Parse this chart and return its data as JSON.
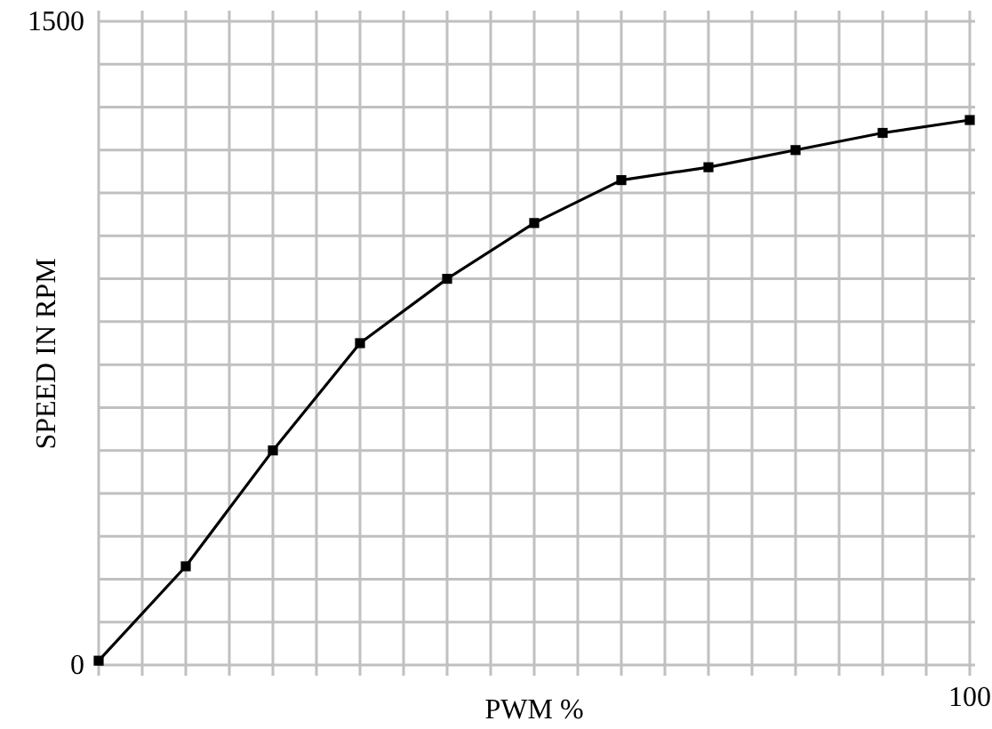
{
  "chart_data": {
    "type": "line",
    "xlabel": "PWM %",
    "ylabel": "SPEED IN RPM",
    "categories": [
      null,
      null,
      null,
      null,
      null,
      null,
      null,
      null,
      null,
      null,
      "100"
    ],
    "series": [
      {
        "color": "#000000",
        "values": [
          10,
          230,
          500,
          750,
          900,
          1030,
          1130,
          1160,
          1200,
          1240,
          1270
        ]
      }
    ],
    "ylim": [
      0,
      1500
    ],
    "yticks": [
      0,
      {
        "value": 100,
        "label": null
      },
      {
        "value": 200,
        "label": null
      },
      {
        "value": 300,
        "label": null
      },
      {
        "value": 400,
        "label": null
      },
      {
        "value": 500,
        "label": null
      },
      {
        "value": 600,
        "label": null
      },
      {
        "value": 700,
        "label": null
      },
      {
        "value": 800,
        "label": null
      },
      {
        "value": 900,
        "label": null
      },
      {
        "value": 1000,
        "label": null
      },
      {
        "value": 1100,
        "label": null
      },
      {
        "value": 1200,
        "label": null
      },
      {
        "value": 1300,
        "label": null
      },
      {
        "value": 1400,
        "label": null
      },
      1500
    ],
    "grid": true,
    "marker": "square",
    "line_style": "solid"
  }
}
